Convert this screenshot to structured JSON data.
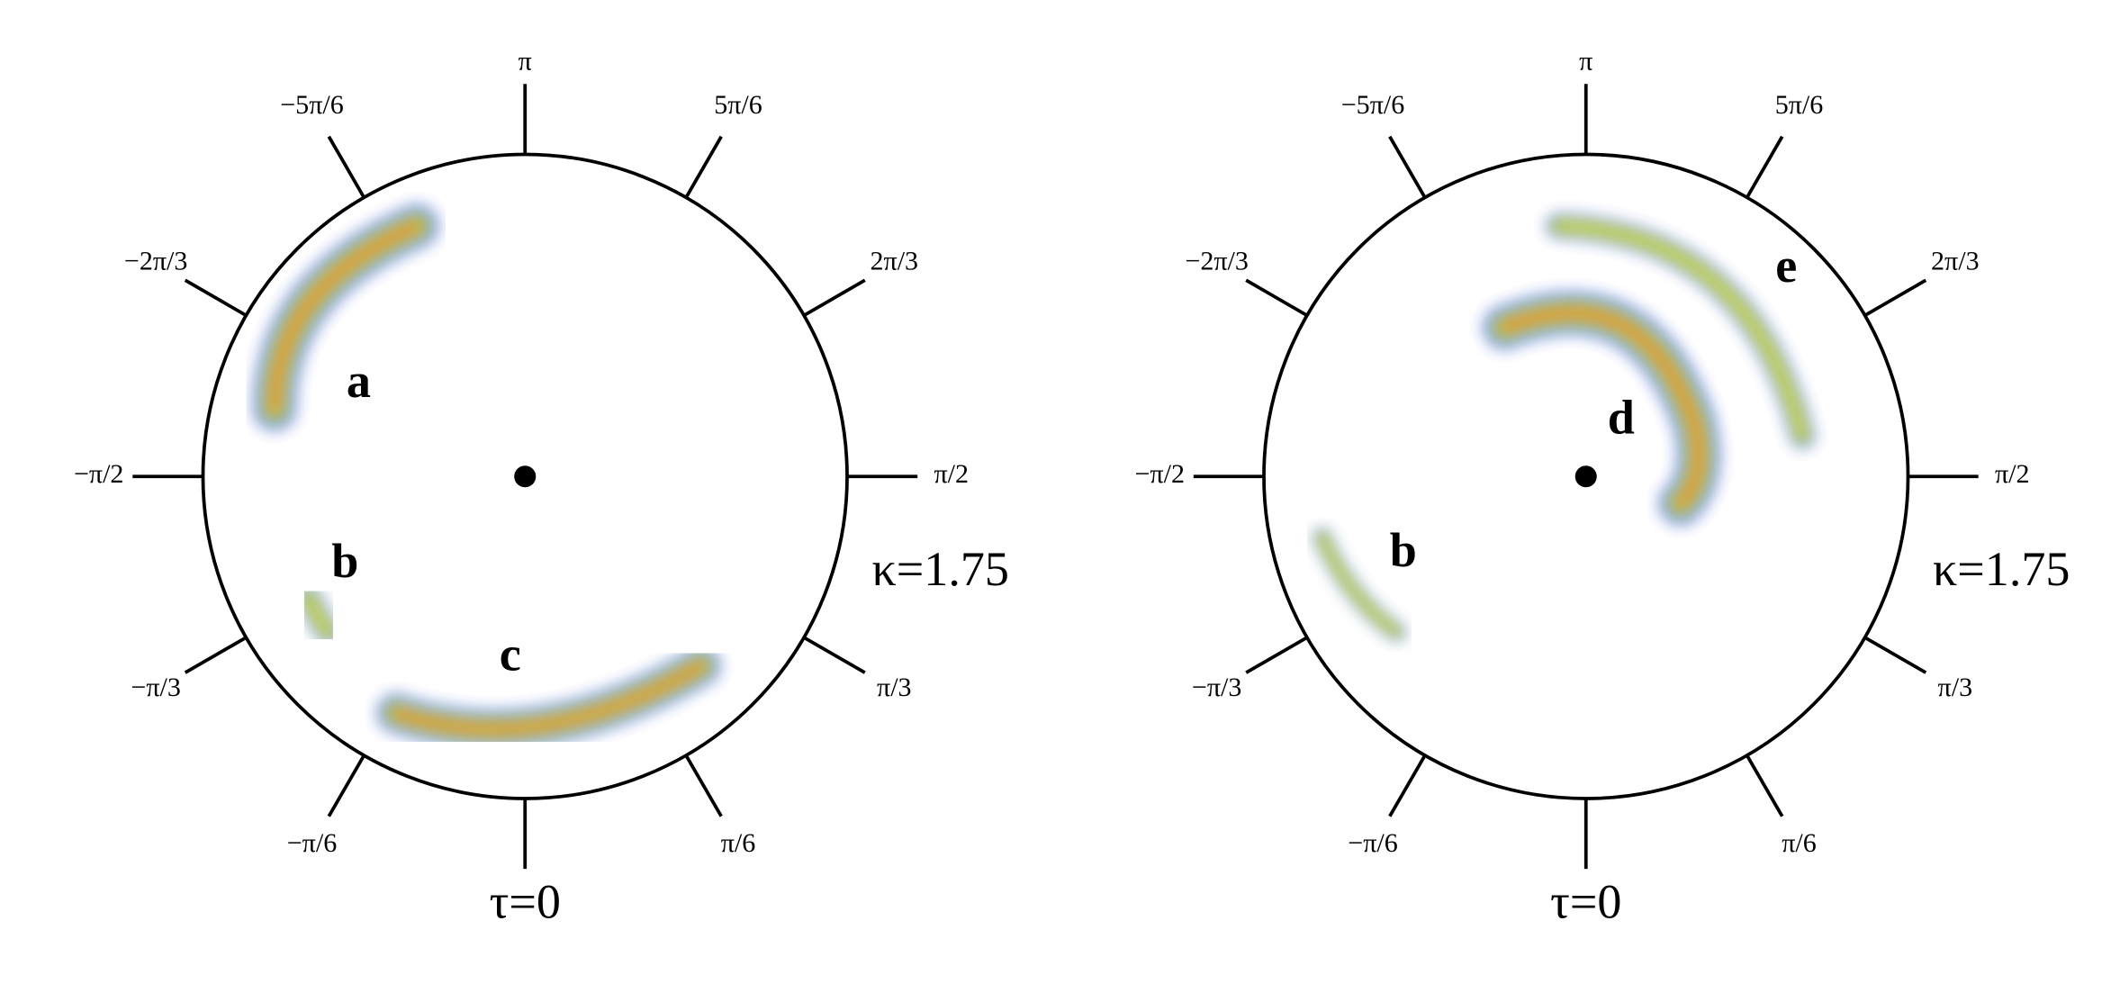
{
  "panels": [
    {
      "tick_labels": [
        "π",
        "5π/6",
        "2π/3",
        "π/2",
        "π/3",
        "π/6",
        "−π/6",
        "−π/3",
        "−π/2",
        "−2π/3",
        "−5π/6"
      ],
      "region_labels": [
        "a",
        "b",
        "c"
      ],
      "kappa": "κ=1.75",
      "tau": "τ=0"
    },
    {
      "tick_labels": [
        "π",
        "5π/6",
        "2π/3",
        "π/2",
        "π/3",
        "π/6",
        "−π/6",
        "−π/3",
        "−π/2",
        "−2π/3",
        "−5π/6"
      ],
      "region_labels": [
        "b",
        "d",
        "e"
      ],
      "kappa": "κ=1.75",
      "tau": "τ=0"
    }
  ]
}
